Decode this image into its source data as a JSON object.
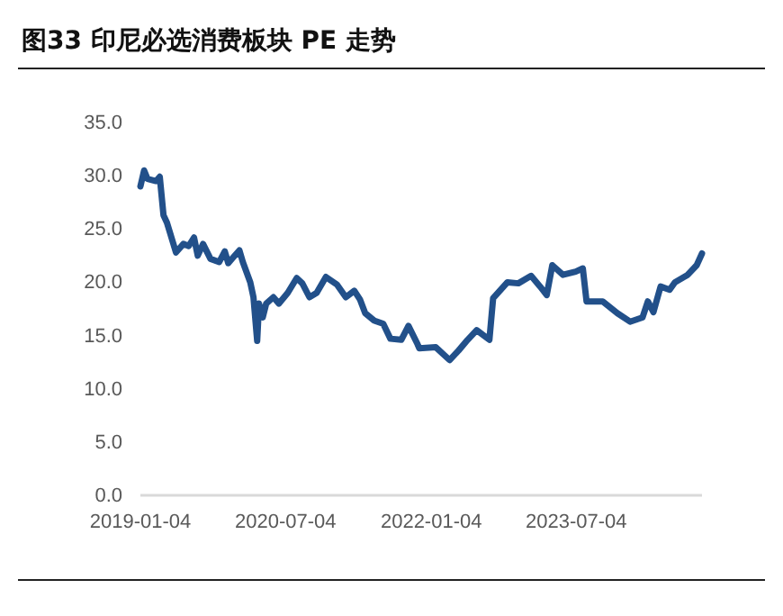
{
  "chart_data": {
    "type": "line",
    "title": "图33 印尼必选消费板块 PE 走势",
    "x": [
      "2019-01-04",
      "2019-01-18",
      "2019-01-31",
      "2019-03-04",
      "2019-03-18",
      "2019-04-01",
      "2019-04-14",
      "2019-05-18",
      "2019-06-15",
      "2019-07-05",
      "2019-07-25",
      "2019-08-08",
      "2019-08-28",
      "2019-09-25",
      "2019-10-28",
      "2019-11-18",
      "2019-12-01",
      "2019-12-22",
      "2020-01-12",
      "2020-01-25",
      "2020-02-22",
      "2020-03-05",
      "2020-03-19",
      "2020-03-26",
      "2020-04-09",
      "2020-04-22",
      "2020-05-19",
      "2020-06-09",
      "2020-07-12",
      "2020-08-15",
      "2020-09-05",
      "2020-10-02",
      "2020-10-29",
      "2020-12-03",
      "2021-01-13",
      "2021-02-16",
      "2021-03-20",
      "2021-04-10",
      "2021-04-30",
      "2021-06-03",
      "2021-07-07",
      "2021-08-03",
      "2021-09-13",
      "2021-10-10",
      "2021-11-13",
      "2021-11-20",
      "2022-01-21",
      "2022-03-14",
      "2022-04-17",
      "2022-05-21",
      "2022-06-24",
      "2022-08-11",
      "2022-08-25",
      "2022-10-18",
      "2022-11-28",
      "2023-01-15",
      "2023-02-18",
      "2023-03-15",
      "2023-04-05",
      "2023-05-15",
      "2023-07-02",
      "2023-07-29",
      "2023-08-12",
      "2023-10-12",
      "2023-12-06",
      "2024-01-23",
      "2024-03-10",
      "2024-03-30",
      "2024-04-20",
      "2024-05-17",
      "2024-06-20",
      "2024-07-10",
      "2024-08-27",
      "2024-09-30",
      "2024-10-20"
    ],
    "series": [
      {
        "color": "#22508a",
        "values": [
          29.0,
          30.5,
          29.7,
          29.5,
          29.9,
          26.3,
          25.6,
          22.8,
          23.6,
          23.4,
          24.2,
          22.5,
          23.6,
          22.2,
          21.9,
          22.9,
          21.8,
          22.4,
          23.0,
          21.9,
          20.0,
          18.6,
          14.5,
          18.0,
          16.7,
          18.0,
          18.6,
          18.0,
          19.0,
          20.4,
          19.9,
          18.6,
          19.0,
          20.5,
          19.8,
          18.6,
          19.2,
          18.4,
          17.1,
          16.4,
          16.1,
          14.7,
          14.6,
          15.9,
          14.2,
          13.8,
          13.9,
          12.7,
          13.6,
          14.6,
          15.5,
          14.6,
          18.5,
          20.0,
          19.9,
          20.6,
          19.6,
          18.8,
          21.6,
          20.7,
          21.0,
          21.3,
          18.2,
          18.2,
          17.1,
          16.3,
          16.7,
          18.2,
          17.2,
          19.6,
          19.3,
          20.0,
          20.7,
          21.6,
          22.7
        ]
      }
    ],
    "xlim": [
      "2019-01-04",
      "2024-10-20"
    ],
    "xticks": [
      {
        "value": "2019-01-04",
        "label": "2019-01-04"
      },
      {
        "value": "2020-07-04",
        "label": "2020-07-04"
      },
      {
        "value": "2022-01-04",
        "label": "2022-01-04"
      },
      {
        "value": "2023-07-04",
        "label": "2023-07-04"
      }
    ],
    "ylim": [
      0,
      35
    ],
    "yticks": [
      {
        "value": 0,
        "label": "0.0"
      },
      {
        "value": 5,
        "label": "5.0"
      },
      {
        "value": 10,
        "label": "10.0"
      },
      {
        "value": 15,
        "label": "15.0"
      },
      {
        "value": 20,
        "label": "20.0"
      },
      {
        "value": 25,
        "label": "25.0"
      },
      {
        "value": 30,
        "label": "30.0"
      },
      {
        "value": 35,
        "label": "35.0"
      }
    ],
    "grid": false,
    "marker": "none",
    "line_style": "solid"
  }
}
